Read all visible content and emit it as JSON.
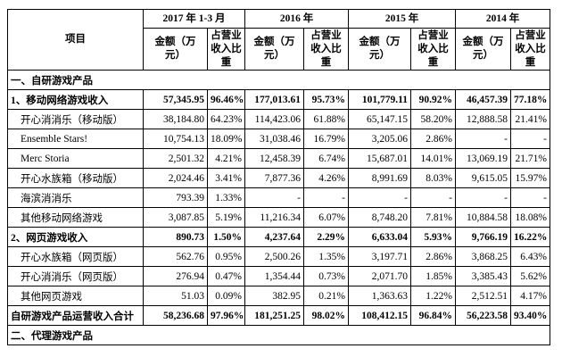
{
  "table": {
    "header": {
      "item": "项目",
      "periods": [
        "2017 年 1-3 月",
        "2016 年",
        "2015 年",
        "2014 年"
      ],
      "amount": "金额（万元）",
      "share": "占营业收入比重"
    },
    "sections": [
      {
        "title": "一、自研游戏产品",
        "subgroups": [
          {
            "label": "1、移动网络游戏收入",
            "values": [
              "57,345.95",
              "96.46%",
              "177,013.61",
              "95.73%",
              "101,779.11",
              "90.92%",
              "46,457.39",
              "77.18%"
            ],
            "items": [
              {
                "label": "开心消消乐（移动版）",
                "values": [
                  "38,184.80",
                  "64.23%",
                  "114,423.06",
                  "61.88%",
                  "65,147.15",
                  "58.20%",
                  "12,888.58",
                  "21.41%"
                ]
              },
              {
                "label": "Ensemble Stars!",
                "values": [
                  "10,754.13",
                  "18.09%",
                  "31,038.46",
                  "16.79%",
                  "3,205.06",
                  "2.86%",
                  "-",
                  "-"
                ]
              },
              {
                "label": "Merc Storia",
                "values": [
                  "2,501.32",
                  "4.21%",
                  "12,458.39",
                  "6.74%",
                  "15,687.01",
                  "14.01%",
                  "13,069.19",
                  "21.71%"
                ]
              },
              {
                "label": "开心水族箱（移动版）",
                "values": [
                  "2,024.46",
                  "3.41%",
                  "7,877.36",
                  "4.26%",
                  "8,991.69",
                  "8.03%",
                  "9,615.05",
                  "15.97%"
                ]
              },
              {
                "label": "海滨消消乐",
                "values": [
                  "793.39",
                  "1.33%",
                  "-",
                  "-",
                  "-",
                  "-",
                  "-",
                  "-"
                ]
              },
              {
                "label": "其他移动网络游戏",
                "values": [
                  "3,087.85",
                  "5.19%",
                  "11,216.34",
                  "6.07%",
                  "8,748.20",
                  "7.81%",
                  "10,884.58",
                  "18.08%"
                ]
              }
            ]
          },
          {
            "label": "2、网页游戏收入",
            "values": [
              "890.73",
              "1.50%",
              "4,237.64",
              "2.29%",
              "6,633.04",
              "5.93%",
              "9,766.19",
              "16.22%"
            ],
            "items": [
              {
                "label": "开心水族箱（网页版）",
                "values": [
                  "562.76",
                  "0.95%",
                  "2,500.26",
                  "1.35%",
                  "3,197.71",
                  "2.86%",
                  "3,868.25",
                  "6.43%"
                ]
              },
              {
                "label": "开心消消乐（网页版）",
                "values": [
                  "276.94",
                  "0.47%",
                  "1,354.44",
                  "0.73%",
                  "2,071.70",
                  "1.85%",
                  "3,385.43",
                  "5.62%"
                ]
              },
              {
                "label": "其他网页游戏",
                "values": [
                  "51.03",
                  "0.09%",
                  "382.95",
                  "0.21%",
                  "1,363.63",
                  "1.22%",
                  "2,512.51",
                  "4.17%"
                ]
              }
            ]
          }
        ],
        "total": {
          "label": "自研游戏产品运营收入合计",
          "values": [
            "58,236.68",
            "97.96%",
            "181,251.25",
            "98.02%",
            "108,412.15",
            "96.84%",
            "56,223.58",
            "93.40%"
          ]
        }
      },
      {
        "title": "二、代理游戏产品"
      }
    ]
  }
}
